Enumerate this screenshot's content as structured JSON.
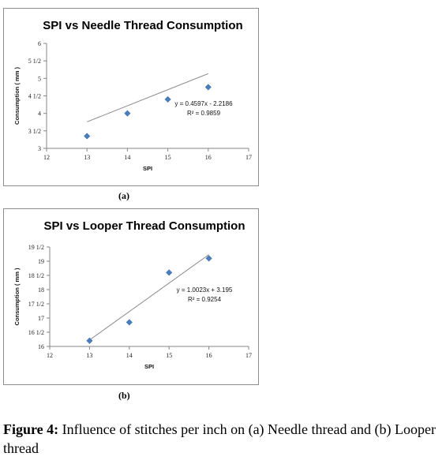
{
  "chart_data": [
    {
      "type": "scatter",
      "title": "SPI vs Needle Thread Consumption",
      "xlabel": "SPI",
      "ylabel": "Consumption ( mm )",
      "xlim": [
        12,
        17
      ],
      "ylim": [
        3,
        6
      ],
      "x_ticks": [
        "12",
        "13",
        "14",
        "15",
        "16",
        "17"
      ],
      "y_ticks": [
        "3",
        "3 1/2",
        "4",
        "4 1/2",
        "5",
        "5 1/2",
        "6"
      ],
      "points": [
        {
          "x": 13,
          "y": 3.35
        },
        {
          "x": 14,
          "y": 4.0
        },
        {
          "x": 15,
          "y": 4.4
        },
        {
          "x": 16,
          "y": 4.75
        }
      ],
      "trendline": {
        "slope": 0.4597,
        "intercept": -2.2186
      },
      "equation": "y = 0.4597x - 2.2186",
      "r_squared": "R² = 0.9859",
      "sublabel": "(a)",
      "grid": false
    },
    {
      "type": "scatter",
      "title": "SPI vs Looper Thread Consumption",
      "xlabel": "SPI",
      "ylabel": "Consumption ( mm )",
      "xlim": [
        12,
        17
      ],
      "ylim": [
        16,
        19.5
      ],
      "x_ticks": [
        "12",
        "13",
        "14",
        "15",
        "16",
        "17"
      ],
      "y_ticks": [
        "16",
        "16 1/2",
        "17",
        "17 1/2",
        "18",
        "18 1/2",
        "19",
        "19 1/2"
      ],
      "points": [
        {
          "x": 13,
          "y": 16.2
        },
        {
          "x": 14,
          "y": 16.85
        },
        {
          "x": 15,
          "y": 18.6
        },
        {
          "x": 16,
          "y": 19.1
        }
      ],
      "trendline": {
        "slope": 1.0023,
        "intercept": 3.195
      },
      "equation": "y = 1.0023x + 3.195",
      "r_squared": "R² = 0.9254",
      "sublabel": "(b)",
      "grid": false
    }
  ],
  "caption": {
    "label": "Figure 4:",
    "text": " Influence of stitches per inch on (a) Needle thread and (b) Looper thread"
  },
  "colors": {
    "marker": "#4a7ebb",
    "axis": "#868686",
    "trendline": "#8a8a8a"
  }
}
